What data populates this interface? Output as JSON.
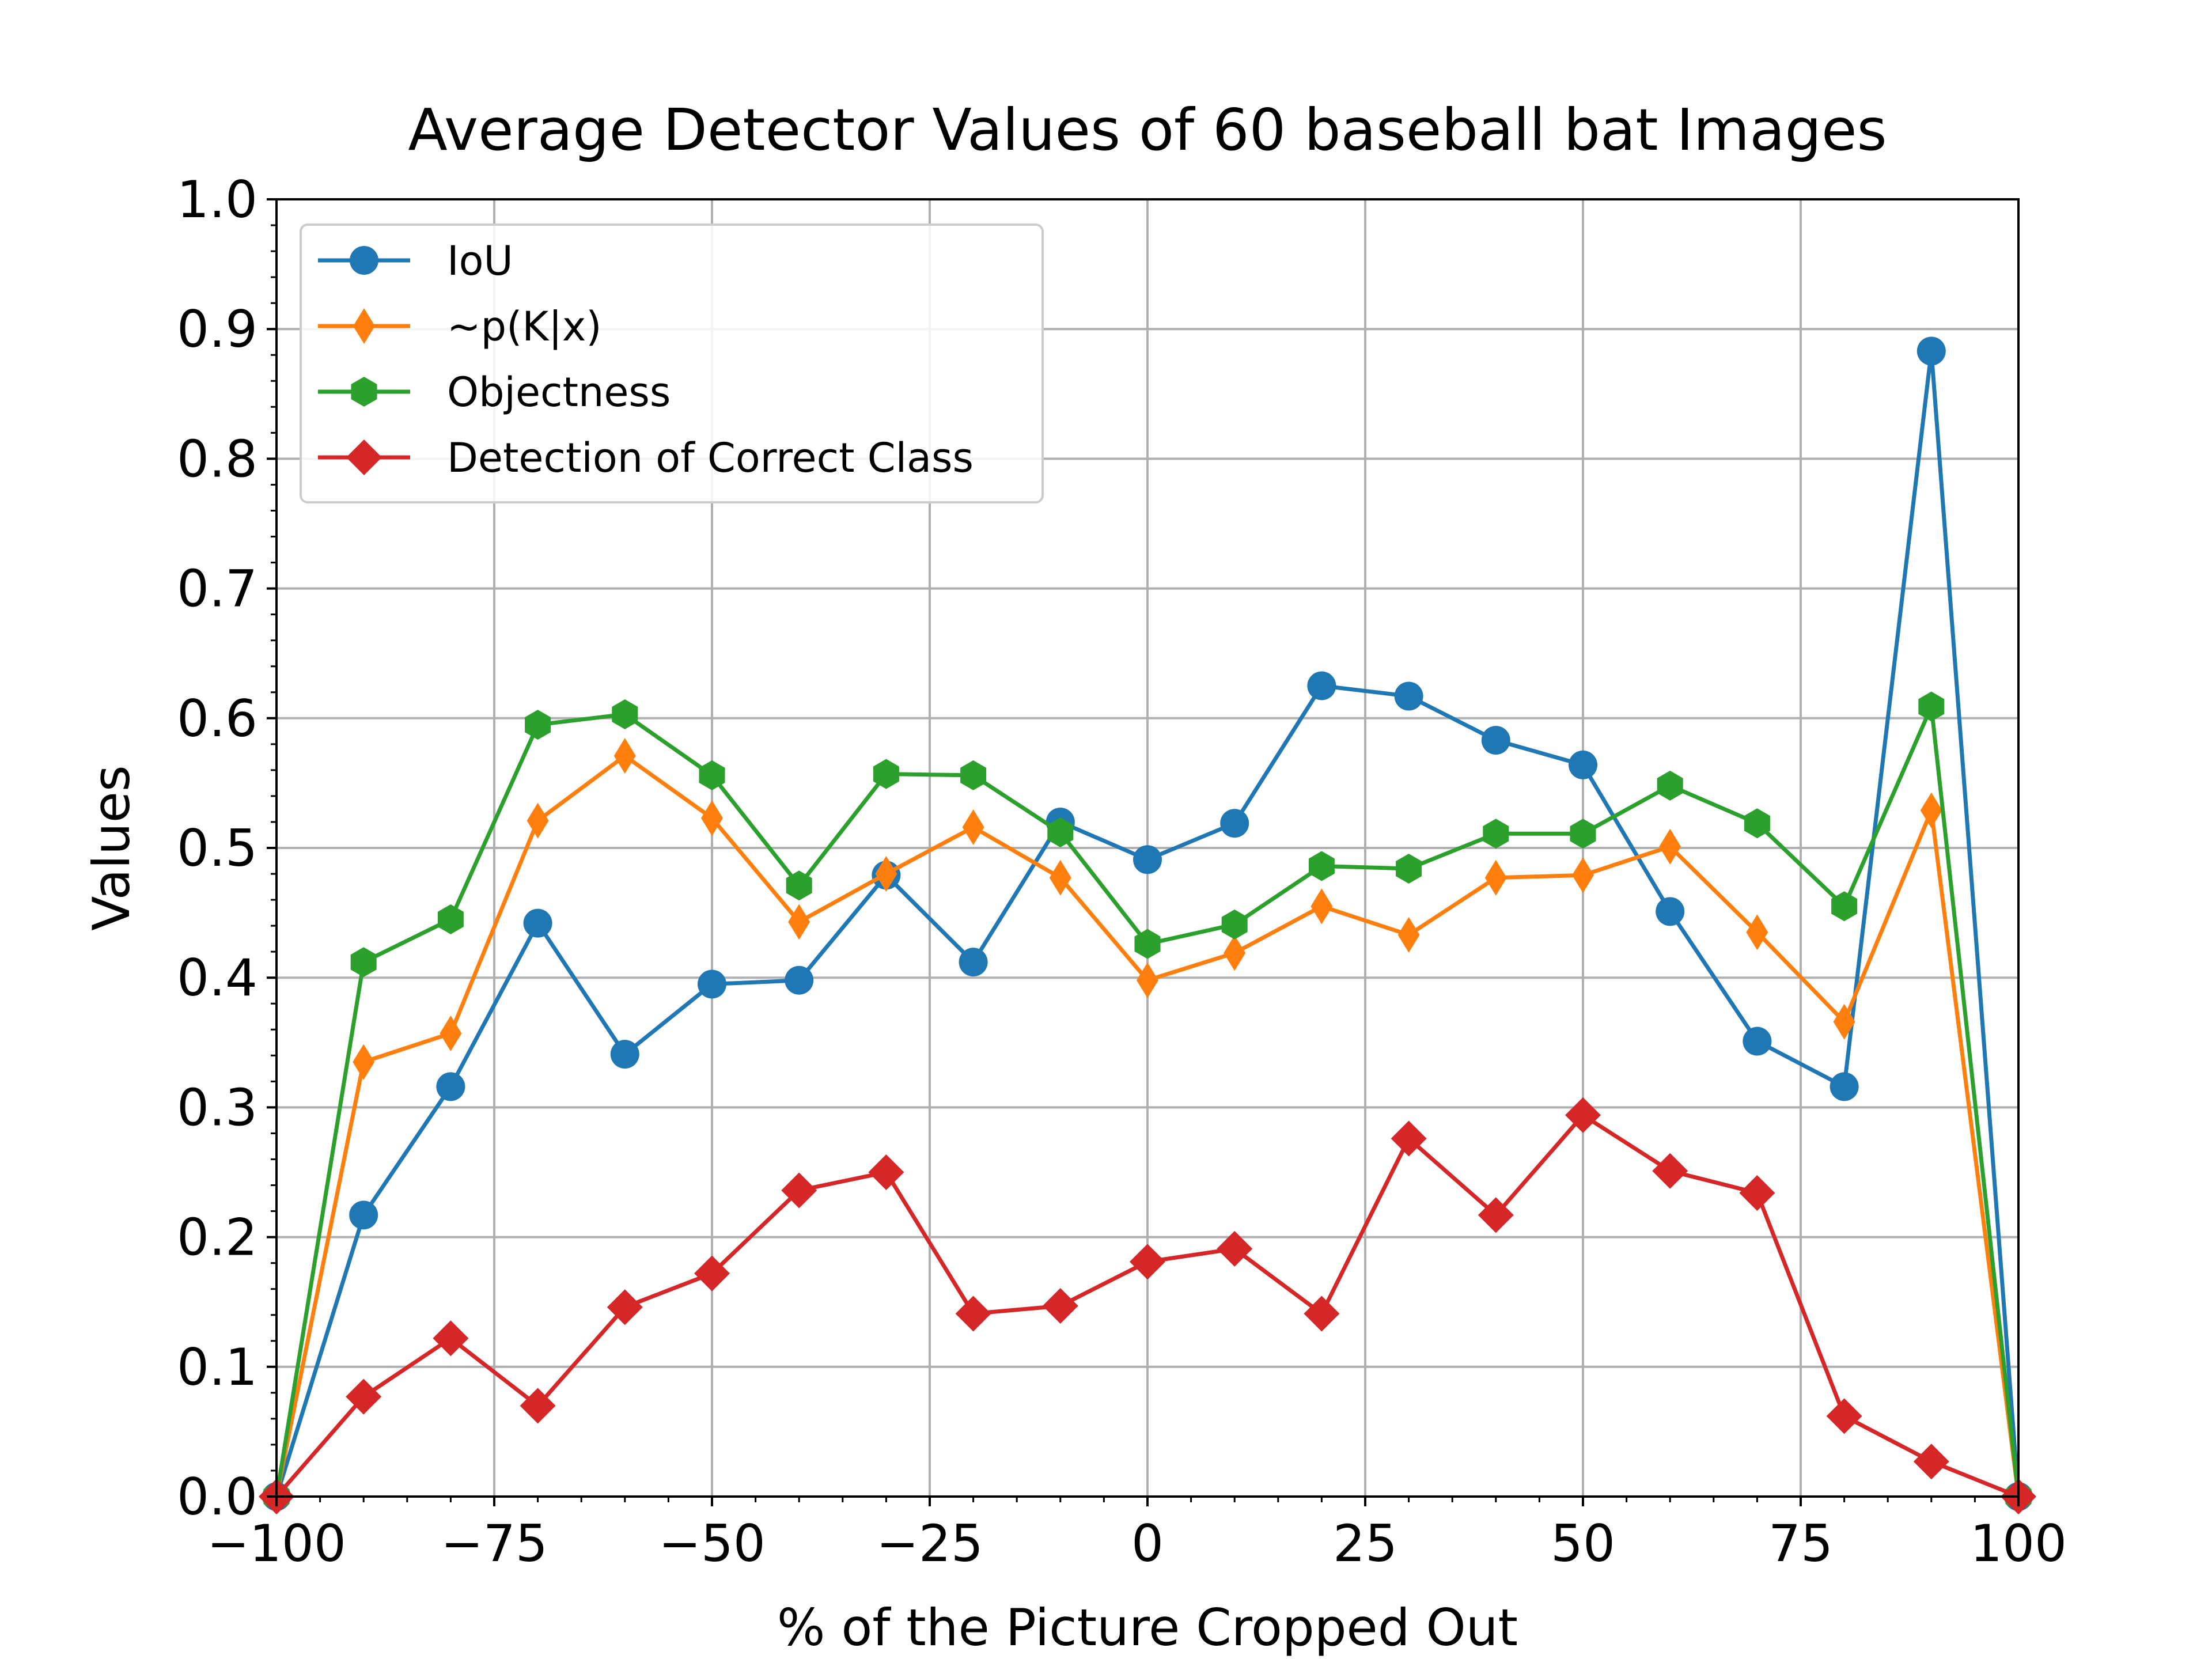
{
  "chart_data": {
    "type": "line",
    "title": "Average Detector Values of 60 baseball bat Images",
    "xlabel": "% of the Picture Cropped Out",
    "ylabel": "Values",
    "xlim": [
      -100,
      100
    ],
    "ylim": [
      0,
      1
    ],
    "grid": true,
    "legend_position": "upper-left",
    "x_ticks": [
      -100,
      -75,
      -50,
      -25,
      0,
      25,
      50,
      75,
      100
    ],
    "x_tick_labels": [
      "−100",
      "−75",
      "−50",
      "−25",
      "0",
      "25",
      "50",
      "75",
      "100"
    ],
    "y_ticks": [
      0,
      0.1,
      0.2,
      0.3,
      0.4,
      0.5,
      0.6,
      0.7,
      0.8,
      0.9,
      1.0
    ],
    "y_tick_labels": [
      "0.0",
      "0.1",
      "0.2",
      "0.3",
      "0.4",
      "0.5",
      "0.6",
      "0.7",
      "0.8",
      "0.9",
      "1.0"
    ],
    "x": [
      -100,
      -90,
      -80,
      -70,
      -60,
      -50,
      -40,
      -30,
      -20,
      -10,
      0,
      10,
      20,
      30,
      40,
      50,
      60,
      70,
      80,
      90,
      100
    ],
    "series": [
      {
        "name": "IoU",
        "color": "#1f77b4",
        "marker": "circle",
        "values": [
          0.0,
          0.217,
          0.316,
          0.442,
          0.341,
          0.395,
          0.398,
          0.479,
          0.412,
          0.52,
          0.491,
          0.519,
          0.625,
          0.617,
          0.583,
          0.564,
          0.451,
          0.351,
          0.316,
          0.883,
          0.0
        ]
      },
      {
        "name": "~p(K|x)",
        "color": "#ff7f0e",
        "marker": "thin-diamond",
        "values": [
          0.0,
          0.335,
          0.357,
          0.521,
          0.571,
          0.523,
          0.443,
          0.48,
          0.516,
          0.477,
          0.398,
          0.419,
          0.455,
          0.433,
          0.477,
          0.479,
          0.501,
          0.435,
          0.366,
          0.529,
          0.0
        ]
      },
      {
        "name": "Objectness",
        "color": "#2ca02c",
        "marker": "hexagon",
        "values": [
          0.0,
          0.412,
          0.445,
          0.595,
          0.603,
          0.556,
          0.471,
          0.557,
          0.556,
          0.512,
          0.426,
          0.441,
          0.486,
          0.484,
          0.511,
          0.511,
          0.548,
          0.519,
          0.455,
          0.609,
          0.0
        ]
      },
      {
        "name": "Detection of Correct Class",
        "color": "#d62728",
        "marker": "diamond",
        "values": [
          0.0,
          0.077,
          0.122,
          0.07,
          0.146,
          0.172,
          0.236,
          0.25,
          0.141,
          0.147,
          0.181,
          0.191,
          0.141,
          0.276,
          0.217,
          0.294,
          0.251,
          0.234,
          0.062,
          0.027,
          0.0
        ]
      }
    ]
  }
}
